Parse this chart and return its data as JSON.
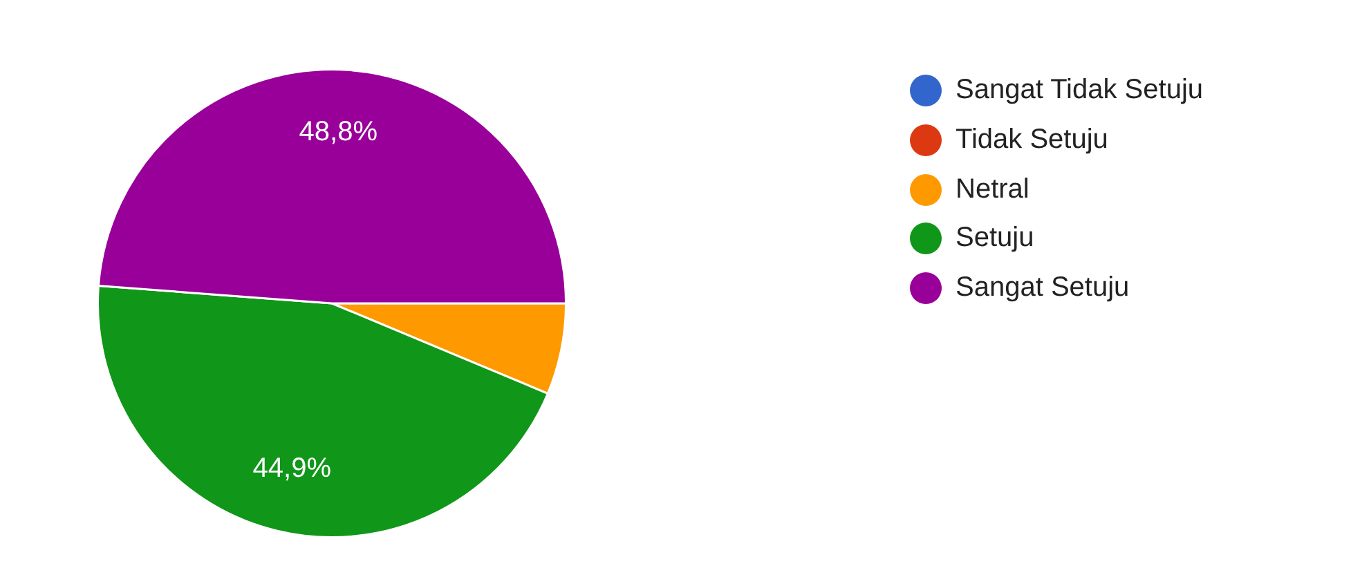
{
  "chart_data": {
    "type": "pie",
    "categories": [
      "Sangat Tidak Setuju",
      "Tidak Setuju",
      "Netral",
      "Setuju",
      "Sangat Setuju"
    ],
    "values": [
      0,
      0,
      6.3,
      44.9,
      48.8
    ],
    "colors": [
      "#3366cc",
      "#dc3912",
      "#ff9900",
      "#109618",
      "#990099"
    ],
    "value_labels": [
      null,
      null,
      null,
      "44,9%",
      "48,8%"
    ],
    "legend": "top right"
  }
}
